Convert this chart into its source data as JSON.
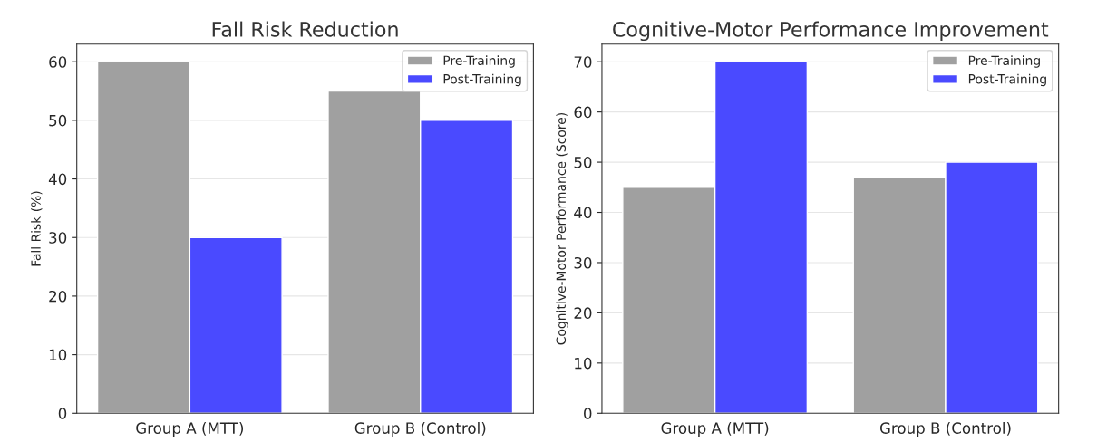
{
  "chart_data": [
    {
      "type": "bar",
      "title": "Fall Risk Reduction",
      "ylabel": "Fall Risk (%)",
      "categories": [
        "Group A (MTT)",
        "Group B (Control)"
      ],
      "series": [
        {
          "name": "Pre-Training",
          "color": "#a0a0a0",
          "values": [
            60,
            55
          ]
        },
        {
          "name": "Post-Training",
          "color": "#4a4aff",
          "values": [
            30,
            50
          ]
        }
      ],
      "ylim": [
        0,
        63
      ],
      "yticks": [
        0,
        10,
        20,
        30,
        40,
        50,
        60
      ],
      "grid": "y",
      "legend": "top right"
    },
    {
      "type": "bar",
      "title": "Cognitive-Motor Performance Improvement",
      "ylabel": "Cognitive-Motor Performance (Score)",
      "categories": [
        "Group A (MTT)",
        "Group B (Control)"
      ],
      "series": [
        {
          "name": "Pre-Training",
          "color": "#a0a0a0",
          "values": [
            45,
            47
          ]
        },
        {
          "name": "Post-Training",
          "color": "#4a4aff",
          "values": [
            70,
            50
          ]
        }
      ],
      "ylim": [
        0,
        73.5
      ],
      "yticks": [
        0,
        10,
        20,
        30,
        40,
        50,
        60,
        70
      ],
      "grid": "y",
      "legend": "top right"
    }
  ]
}
